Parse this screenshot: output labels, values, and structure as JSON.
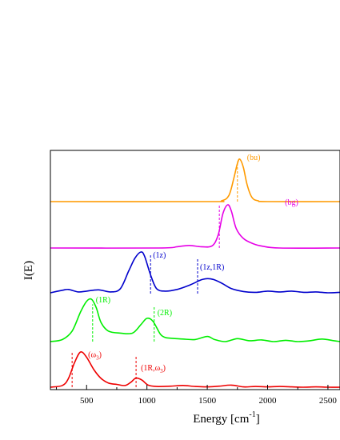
{
  "chart_data": {
    "type": "line",
    "xlabel": "Energy [cm",
    "xlabel_sup": "-1",
    "xlabel_close": "]",
    "ylabel": "I(E)",
    "xlim": [
      200,
      2600
    ],
    "xticks": [
      500,
      1000,
      1500,
      2000,
      2500
    ],
    "xtick_labels": [
      "500",
      "1000",
      "1500",
      "2000",
      "2500"
    ],
    "yticks": false,
    "grid": false,
    "legend": "none",
    "series": [
      {
        "color": "#ff9a00",
        "baseline": 0.0,
        "x": [
          200,
          1500,
          1620,
          1680,
          1720,
          1750,
          1770,
          1800,
          1830,
          1870,
          1920,
          2000,
          2600
        ],
        "y": [
          0,
          0,
          0.02,
          0.15,
          0.55,
          0.9,
          1.0,
          0.8,
          0.4,
          0.1,
          0.02,
          0,
          0
        ],
        "annotations": [
          {
            "label": "(bu)",
            "x": 1750,
            "marker_level": 0.95,
            "label_level": 0.98,
            "dx": 12
          }
        ]
      },
      {
        "color": "#e600e6",
        "baseline": 0.0,
        "x": [
          200,
          1100,
          1250,
          1350,
          1450,
          1540,
          1590,
          1630,
          1670,
          1700,
          1740,
          1800,
          1880,
          1960,
          2100,
          2600
        ],
        "y": [
          0,
          0,
          0.03,
          0.06,
          0.03,
          0.05,
          0.3,
          0.8,
          1.0,
          0.85,
          0.45,
          0.22,
          0.1,
          0.04,
          0.0,
          0.0
        ],
        "annotations": [
          {
            "label": "(bg)",
            "x": 1600,
            "marker_level": 1.0,
            "label_level": 1.0,
            "dx": 82
          }
        ]
      },
      {
        "color": "#0000cc",
        "baseline": 0.0,
        "x": [
          200,
          300,
          350,
          430,
          500,
          600,
          700,
          780,
          850,
          900,
          950,
          980,
          1030,
          1080,
          1150,
          1250,
          1350,
          1450,
          1500,
          1550,
          1620,
          1700,
          1800,
          1900,
          2000,
          2100,
          2200,
          2300,
          2400,
          2500,
          2600
        ],
        "y": [
          0.02,
          0.08,
          0.1,
          0.04,
          0.06,
          0.09,
          0.04,
          0.12,
          0.55,
          0.85,
          1.0,
          0.9,
          0.45,
          0.12,
          0.06,
          0.1,
          0.2,
          0.33,
          0.36,
          0.34,
          0.25,
          0.12,
          0.05,
          0.03,
          0.06,
          0.04,
          0.06,
          0.03,
          0.04,
          0.02,
          0.03
        ],
        "annotations": [
          {
            "label": "(1z)",
            "x": 1030,
            "marker_level": 0.92,
            "label_level": 0.87,
            "dx": 3
          },
          {
            "label": "(1z,1R)",
            "x": 1420,
            "marker_level": 0.85,
            "label_level": 0.58,
            "dx": 3
          }
        ]
      },
      {
        "color": "#00ee00",
        "baseline": 0.0,
        "x": [
          200,
          300,
          380,
          450,
          500,
          540,
          580,
          620,
          680,
          780,
          880,
          950,
          1000,
          1050,
          1110,
          1150,
          1200,
          1300,
          1400,
          1500,
          1560,
          1650,
          1750,
          1850,
          1950,
          2050,
          2150,
          2250,
          2350,
          2450,
          2550,
          2600
        ],
        "y": [
          0.0,
          0.05,
          0.25,
          0.7,
          0.95,
          1.0,
          0.8,
          0.45,
          0.25,
          0.2,
          0.2,
          0.4,
          0.55,
          0.48,
          0.18,
          0.1,
          0.08,
          0.06,
          0.05,
          0.12,
          0.05,
          0.0,
          0.07,
          0.02,
          0.04,
          0.0,
          0.03,
          0.0,
          0.02,
          0.06,
          0.02,
          0.0
        ],
        "annotations": [
          {
            "label": "(1R)",
            "x": 550,
            "marker_level": 0.88,
            "label_level": 0.92,
            "dx": 4
          },
          {
            "label": "(2R)",
            "x": 1060,
            "marker_level": 0.85,
            "label_level": 0.62,
            "dx": 4
          }
        ]
      },
      {
        "color": "#ee0000",
        "baseline": 0.0,
        "x": [
          200,
          300,
          350,
          400,
          450,
          500,
          560,
          620,
          680,
          750,
          820,
          870,
          910,
          960,
          1010,
          1080,
          1200,
          1300,
          1400,
          1500,
          1600,
          1700,
          1800,
          1900,
          2000,
          2100,
          2200,
          2300,
          2400,
          2500,
          2600
        ],
        "y": [
          0.0,
          0.05,
          0.25,
          0.7,
          1.0,
          0.85,
          0.5,
          0.25,
          0.12,
          0.08,
          0.05,
          0.15,
          0.26,
          0.2,
          0.06,
          0.02,
          0.03,
          0.05,
          0.02,
          0.01,
          0.03,
          0.06,
          0.01,
          0.02,
          0.01,
          0.02,
          0.01,
          0.0,
          0.01,
          0.0,
          0.0
        ],
        "annotations": [
          {
            "label": "(ω",
            "sub": "3",
            "label_close": ")",
            "x": 380,
            "marker_level": 1.0,
            "label_level": 0.85,
            "dx": 20
          },
          {
            "label": "(1R,ω",
            "sub": "3",
            "label_close": ")",
            "x": 910,
            "marker_level": 0.9,
            "label_level": 0.48,
            "dx": 6
          }
        ]
      }
    ]
  }
}
